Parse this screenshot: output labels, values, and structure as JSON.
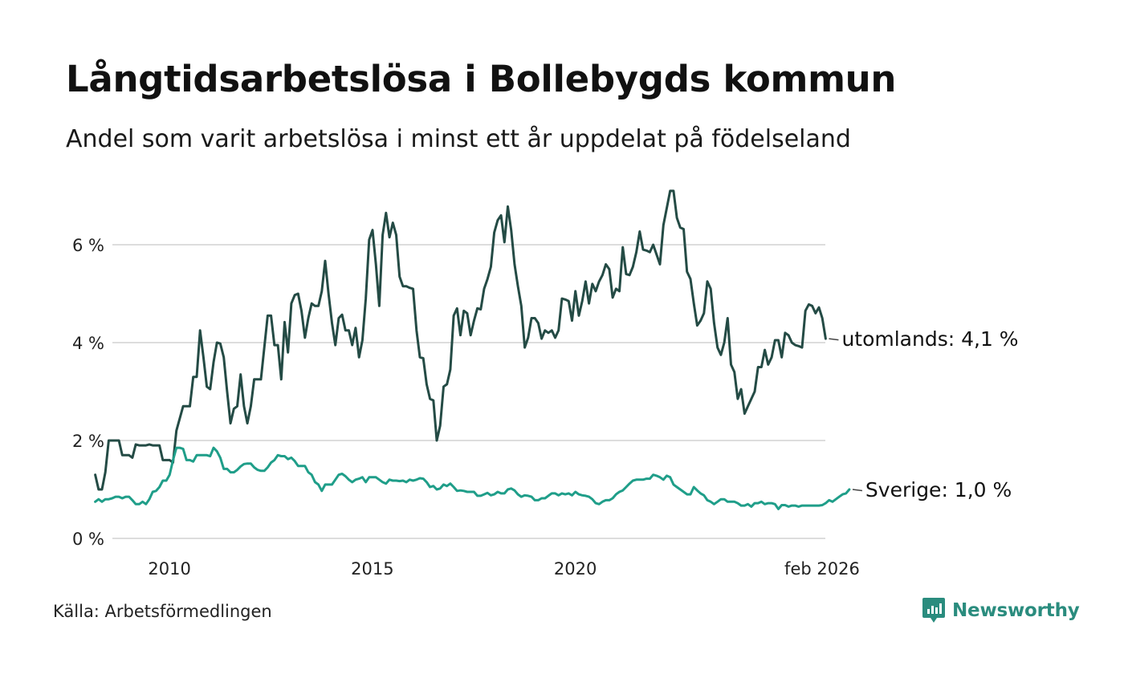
{
  "title": "Långtidsarbetslösa i Bollebygds kommun",
  "subtitle": "Andel som varit arbetslösa i minst ett år uppdelat på födelseland",
  "source": "Källa: Arbetsförmedlingen",
  "brand": {
    "name": "Newsworthy",
    "icon": "newsworthy-logo-icon",
    "color": "#2a8c7e"
  },
  "chart_data": {
    "type": "line",
    "title": "Långtidsarbetslösa i Bollebygds kommun",
    "xlabel": "",
    "ylabel": "",
    "x_start": 2008.17,
    "x_step": 0.08333,
    "xlim": [
      2008.0,
      2026.2
    ],
    "ylim": [
      0,
      7.2
    ],
    "grid": true,
    "y_ticks": [
      {
        "value": 0,
        "label": "0 %"
      },
      {
        "value": 2,
        "label": "2 %"
      },
      {
        "value": 4,
        "label": "4 %"
      },
      {
        "value": 6,
        "label": "6 %"
      }
    ],
    "x_ticks": [
      {
        "value": 2010,
        "label": "2010"
      },
      {
        "value": 2015,
        "label": "2015"
      },
      {
        "value": 2020,
        "label": "2020"
      },
      {
        "value": 2026.08,
        "label": "feb 2026"
      }
    ],
    "series": [
      {
        "name": "utomlands",
        "end_label": "utomlands: 4,1 %",
        "color": "#244b45",
        "values": [
          1.3,
          1.0,
          1.0,
          1.35,
          2.0,
          2.0,
          2.0,
          2.0,
          1.7,
          1.7,
          1.7,
          1.65,
          1.92,
          1.9,
          1.9,
          1.9,
          1.92,
          1.9,
          1.9,
          1.9,
          1.6,
          1.6,
          1.6,
          1.55,
          2.2,
          2.45,
          2.7,
          2.7,
          2.7,
          3.3,
          3.3,
          4.25,
          3.7,
          3.1,
          3.05,
          3.6,
          4.0,
          3.98,
          3.7,
          3.0,
          2.35,
          2.65,
          2.7,
          3.35,
          2.7,
          2.35,
          2.7,
          3.25,
          3.25,
          3.25,
          3.9,
          4.55,
          4.55,
          3.95,
          3.95,
          3.25,
          4.42,
          3.8,
          4.8,
          4.97,
          5.0,
          4.65,
          4.1,
          4.5,
          4.8,
          4.75,
          4.75,
          5.05,
          5.67,
          5.0,
          4.4,
          3.95,
          4.5,
          4.57,
          4.25,
          4.25,
          3.95,
          4.3,
          3.7,
          4.05,
          4.9,
          6.1,
          6.3,
          5.6,
          4.75,
          6.2,
          6.65,
          6.15,
          6.45,
          6.2,
          5.35,
          5.15,
          5.15,
          5.12,
          5.1,
          4.25,
          3.7,
          3.68,
          3.15,
          2.85,
          2.82,
          2.0,
          2.3,
          3.1,
          3.15,
          3.45,
          4.55,
          4.7,
          4.15,
          4.65,
          4.6,
          4.15,
          4.45,
          4.7,
          4.68,
          5.1,
          5.3,
          5.55,
          6.25,
          6.5,
          6.6,
          6.05,
          6.78,
          6.3,
          5.6,
          5.15,
          4.75,
          3.9,
          4.1,
          4.5,
          4.5,
          4.4,
          4.08,
          4.25,
          4.2,
          4.25,
          4.1,
          4.25,
          4.9,
          4.88,
          4.85,
          4.45,
          5.05,
          4.55,
          4.85,
          5.25,
          4.8,
          5.2,
          5.05,
          5.25,
          5.38,
          5.6,
          5.5,
          4.92,
          5.1,
          5.05,
          5.95,
          5.4,
          5.38,
          5.55,
          5.85,
          6.27,
          5.9,
          5.88,
          5.85,
          6.0,
          5.8,
          5.6,
          6.4,
          6.75,
          7.1,
          7.1,
          6.55,
          6.35,
          6.32,
          5.45,
          5.3,
          4.8,
          4.35,
          4.45,
          4.6,
          5.25,
          5.1,
          4.4,
          3.9,
          3.75,
          4.0,
          4.5,
          3.55,
          3.4,
          2.85,
          3.05,
          2.55,
          2.7,
          2.85,
          3.0,
          3.5,
          3.5,
          3.85,
          3.55,
          3.7,
          4.05,
          4.05,
          3.7,
          4.2,
          4.15,
          4.0,
          3.95,
          3.93,
          3.9,
          4.65,
          4.78,
          4.75,
          4.6,
          4.72,
          4.5,
          4.08
        ]
      },
      {
        "name": "Sverige",
        "end_label": "Sverige: 1,0 %",
        "color": "#1f9e89",
        "values": [
          0.75,
          0.8,
          0.75,
          0.8,
          0.8,
          0.82,
          0.85,
          0.85,
          0.82,
          0.85,
          0.85,
          0.78,
          0.7,
          0.7,
          0.75,
          0.7,
          0.8,
          0.95,
          0.97,
          1.05,
          1.18,
          1.18,
          1.3,
          1.6,
          1.85,
          1.85,
          1.83,
          1.6,
          1.6,
          1.57,
          1.7,
          1.7,
          1.7,
          1.7,
          1.68,
          1.85,
          1.78,
          1.65,
          1.42,
          1.42,
          1.35,
          1.35,
          1.4,
          1.47,
          1.52,
          1.53,
          1.53,
          1.45,
          1.4,
          1.38,
          1.38,
          1.45,
          1.55,
          1.6,
          1.7,
          1.68,
          1.68,
          1.62,
          1.65,
          1.58,
          1.48,
          1.48,
          1.48,
          1.35,
          1.3,
          1.15,
          1.1,
          0.97,
          1.1,
          1.1,
          1.1,
          1.2,
          1.3,
          1.32,
          1.27,
          1.2,
          1.15,
          1.2,
          1.22,
          1.25,
          1.15,
          1.25,
          1.25,
          1.25,
          1.2,
          1.15,
          1.12,
          1.2,
          1.18,
          1.18,
          1.17,
          1.18,
          1.15,
          1.2,
          1.18,
          1.2,
          1.23,
          1.22,
          1.15,
          1.05,
          1.07,
          1.0,
          1.02,
          1.1,
          1.07,
          1.12,
          1.05,
          0.97,
          0.98,
          0.97,
          0.95,
          0.95,
          0.95,
          0.87,
          0.87,
          0.9,
          0.93,
          0.88,
          0.9,
          0.95,
          0.92,
          0.92,
          1.0,
          1.02,
          0.98,
          0.9,
          0.85,
          0.88,
          0.87,
          0.85,
          0.78,
          0.78,
          0.82,
          0.82,
          0.87,
          0.92,
          0.92,
          0.88,
          0.92,
          0.9,
          0.92,
          0.88,
          0.95,
          0.9,
          0.88,
          0.87,
          0.85,
          0.8,
          0.72,
          0.7,
          0.75,
          0.78,
          0.78,
          0.82,
          0.9,
          0.95,
          0.98,
          1.05,
          1.12,
          1.18,
          1.2,
          1.2,
          1.2,
          1.22,
          1.22,
          1.3,
          1.28,
          1.25,
          1.2,
          1.28,
          1.25,
          1.1,
          1.05,
          1.0,
          0.95,
          0.9,
          0.9,
          1.05,
          0.98,
          0.92,
          0.88,
          0.78,
          0.75,
          0.7,
          0.75,
          0.8,
          0.8,
          0.75,
          0.75,
          0.75,
          0.72,
          0.67,
          0.67,
          0.7,
          0.65,
          0.72,
          0.72,
          0.75,
          0.7,
          0.72,
          0.72,
          0.7,
          0.6,
          0.68,
          0.68,
          0.65,
          0.67,
          0.67,
          0.65,
          0.67,
          0.67,
          0.67,
          0.67,
          0.67,
          0.67,
          0.68,
          0.72,
          0.78,
          0.75,
          0.8,
          0.85,
          0.9,
          0.92,
          1.0
        ]
      }
    ]
  }
}
